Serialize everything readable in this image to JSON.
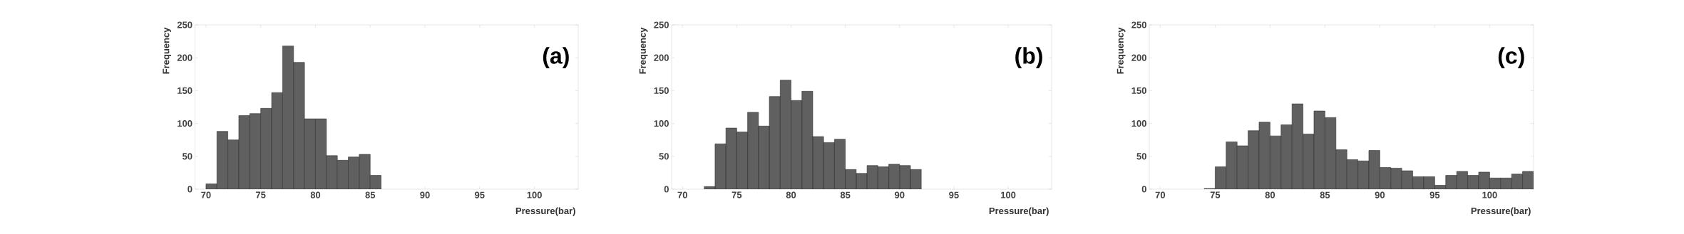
{
  "chart_data": [
    {
      "type": "histogram",
      "annotations": [
        "(a)"
      ],
      "xlabel": "Pressure(bar)",
      "ylabel": "Frequency",
      "color": "#606060",
      "bins": [
        70,
        71,
        72,
        73,
        74,
        75,
        76,
        77,
        78,
        79,
        80,
        81,
        82,
        83,
        84,
        85,
        86
      ],
      "values": [
        8,
        88,
        75,
        112,
        115,
        123,
        147,
        218,
        193,
        107,
        107,
        51,
        44,
        49,
        53,
        21
      ],
      "xlim": [
        69,
        104
      ],
      "ylim": [
        0,
        250
      ],
      "xticks": [
        70,
        75,
        80,
        85,
        90,
        95,
        100
      ],
      "yticks": [
        0,
        50,
        100,
        150,
        200,
        250
      ]
    },
    {
      "type": "histogram",
      "annotations": [
        "(b)"
      ],
      "xlabel": "Pressure(bar)",
      "ylabel": "Frequency",
      "color": "#606060",
      "bins": [
        72,
        73,
        74,
        75,
        76,
        77,
        78,
        79,
        80,
        81,
        82,
        83,
        84,
        85,
        86,
        87,
        88,
        89,
        90,
        91,
        92
      ],
      "values": [
        4,
        69,
        93,
        87,
        117,
        96,
        141,
        166,
        135,
        149,
        80,
        71,
        76,
        30,
        24,
        36,
        34,
        38,
        36,
        30
      ],
      "xlim": [
        69,
        104
      ],
      "ylim": [
        0,
        250
      ],
      "xticks": [
        70,
        75,
        80,
        85,
        90,
        95,
        100
      ],
      "yticks": [
        0,
        50,
        100,
        150,
        200,
        250
      ]
    },
    {
      "type": "histogram",
      "annotations": [
        "(c)"
      ],
      "xlabel": "Pressure(bar)",
      "ylabel": "Frequency",
      "color": "#606060",
      "bins": [
        74,
        75,
        76,
        77,
        78,
        79,
        80,
        81,
        82,
        83,
        84,
        85,
        86,
        87,
        88,
        89,
        90,
        91,
        92,
        93,
        94,
        95,
        96,
        97,
        98,
        99,
        100,
        101,
        102,
        103,
        104
      ],
      "values": [
        1,
        34,
        72,
        66,
        89,
        102,
        81,
        98,
        130,
        84,
        119,
        109,
        60,
        45,
        43,
        59,
        33,
        32,
        28,
        19,
        19,
        6,
        21,
        27,
        21,
        26,
        17,
        17,
        23,
        27
      ],
      "xlim": [
        69,
        104
      ],
      "ylim": [
        0,
        250
      ],
      "xticks": [
        70,
        75,
        80,
        85,
        90,
        95,
        100
      ],
      "yticks": [
        0,
        50,
        100,
        150,
        200,
        250
      ]
    }
  ]
}
